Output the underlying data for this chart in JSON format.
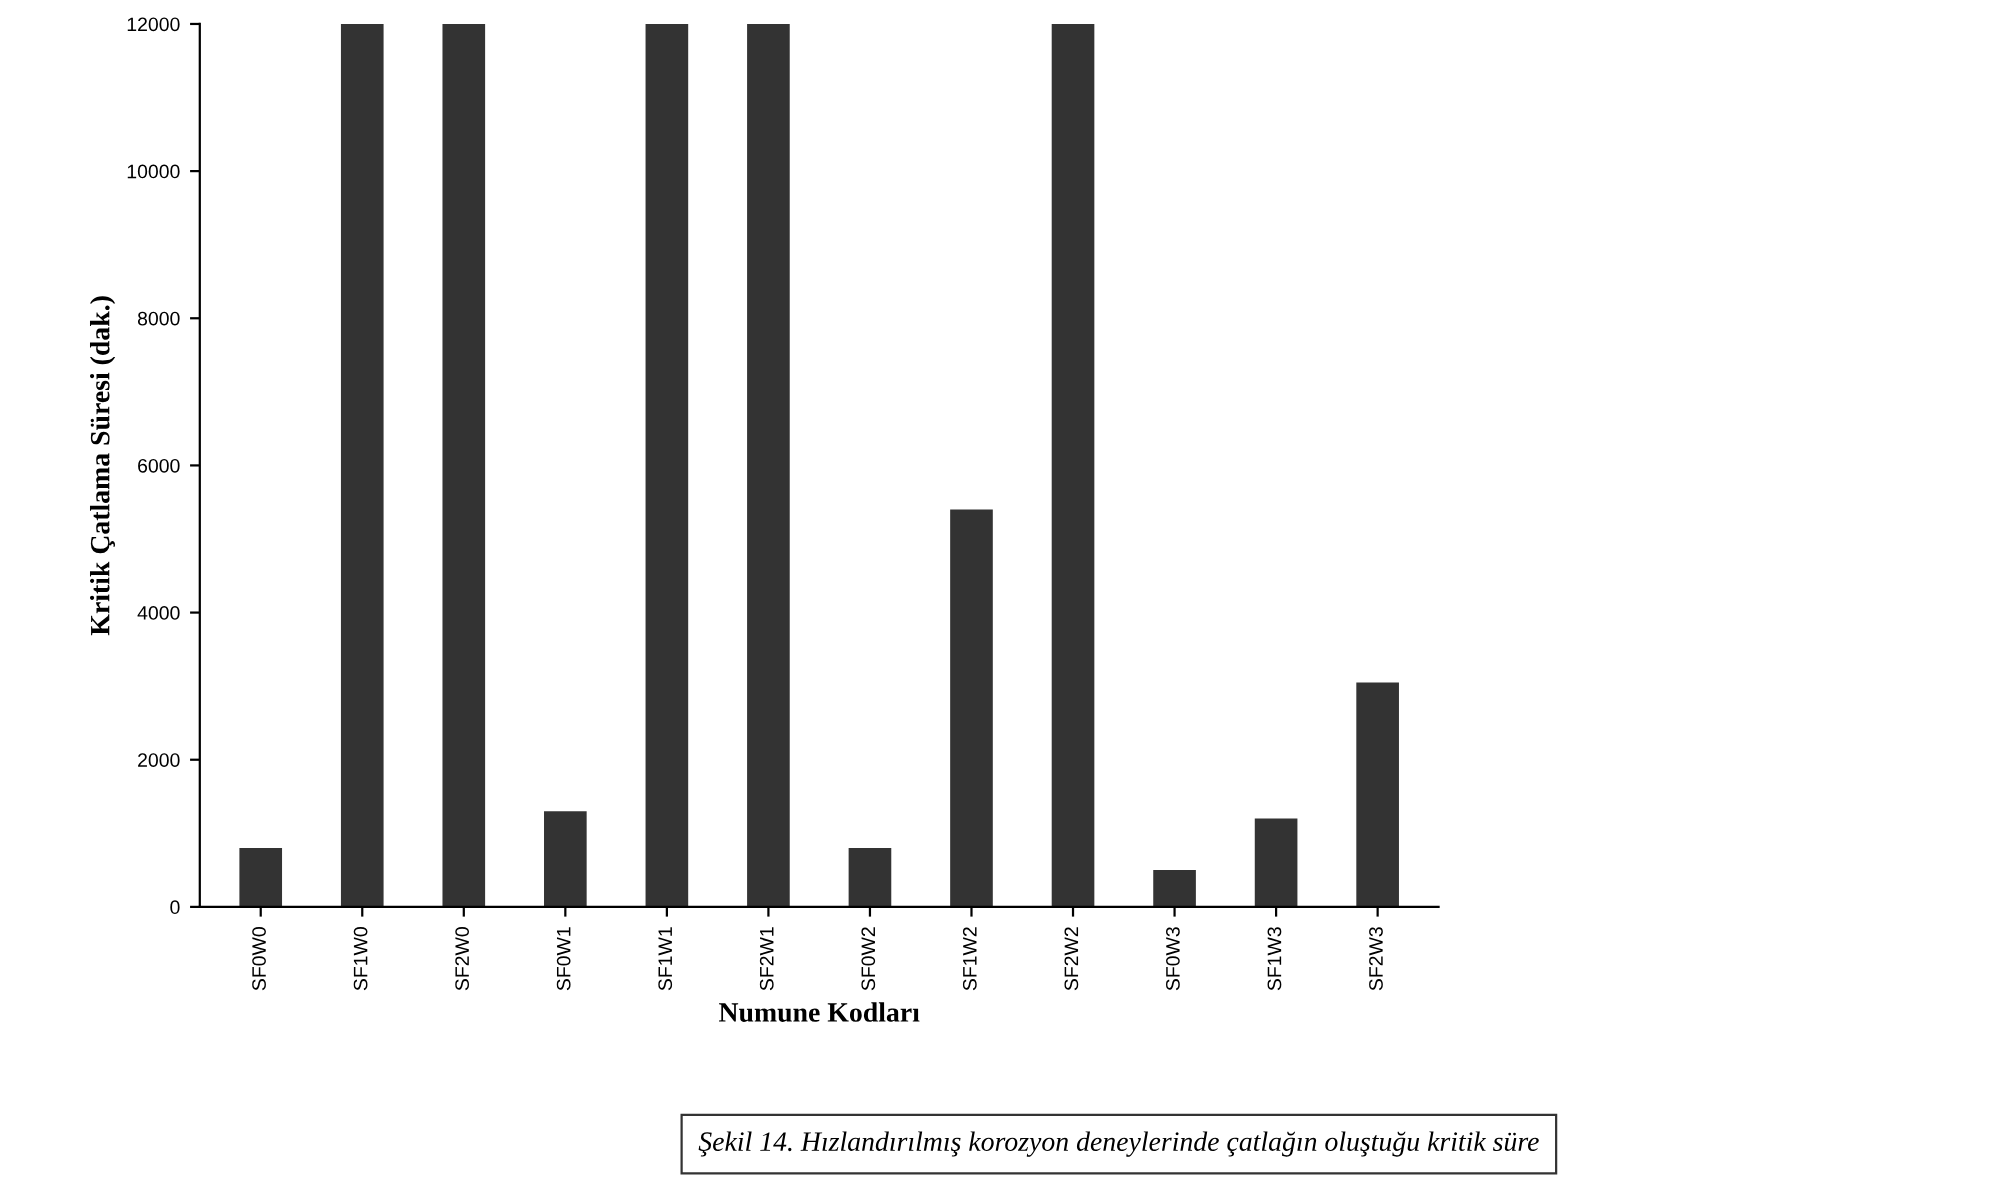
{
  "chart_data": {
    "type": "bar",
    "categories": [
      "SF0W0",
      "SF1W0",
      "SF2W0",
      "SF0W1",
      "SF1W1",
      "SF2W1",
      "SF0W2",
      "SF1W2",
      "SF2W2",
      "SF0W3",
      "SF1W3",
      "SF2W3"
    ],
    "values": [
      800,
      12000,
      12000,
      1300,
      12000,
      12000,
      800,
      5400,
      12000,
      500,
      1200,
      3050
    ],
    "color": "#333333",
    "ylim": [
      0,
      12000
    ],
    "yticks": [
      0,
      2000,
      4000,
      6000,
      8000,
      10000,
      12000
    ],
    "xlabel": "Numune Kodları",
    "ylabel": "Kritik Çatlama Süresi (dak.)",
    "annotations": [
      "Şekil 14. Hızlandırılmış korozyon deneylerinde çatlağın oluştuğu kritik süre"
    ],
    "grid": false,
    "legend": false
  }
}
